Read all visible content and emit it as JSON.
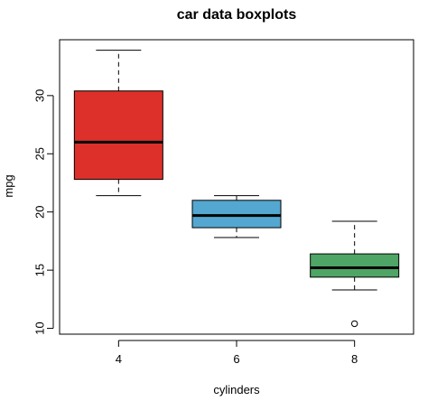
{
  "chart_data": {
    "type": "boxplot",
    "title": "car data boxplots",
    "xlabel": "cylinders",
    "ylabel": "mpg",
    "categories": [
      "4",
      "6",
      "8"
    ],
    "y_ticks": [
      "10",
      "15",
      "20",
      "25",
      "30"
    ],
    "ylim": [
      9.5,
      34.8
    ],
    "grid": false,
    "boxes": [
      {
        "category": "4",
        "whisker_low": 21.4,
        "q1": 22.8,
        "median": 26.0,
        "q3": 30.4,
        "whisker_high": 33.9,
        "outliers": [],
        "color": "#dd302b"
      },
      {
        "category": "6",
        "whisker_low": 17.8,
        "q1": 18.65,
        "median": 19.7,
        "q3": 21.0,
        "whisker_high": 21.4,
        "outliers": [],
        "color": "#54a7d1"
      },
      {
        "category": "8",
        "whisker_low": 13.3,
        "q1": 14.4,
        "median": 15.2,
        "q3": 16.4,
        "whisker_high": 19.2,
        "outliers": [
          10.4
        ],
        "color": "#4ea565"
      }
    ]
  }
}
